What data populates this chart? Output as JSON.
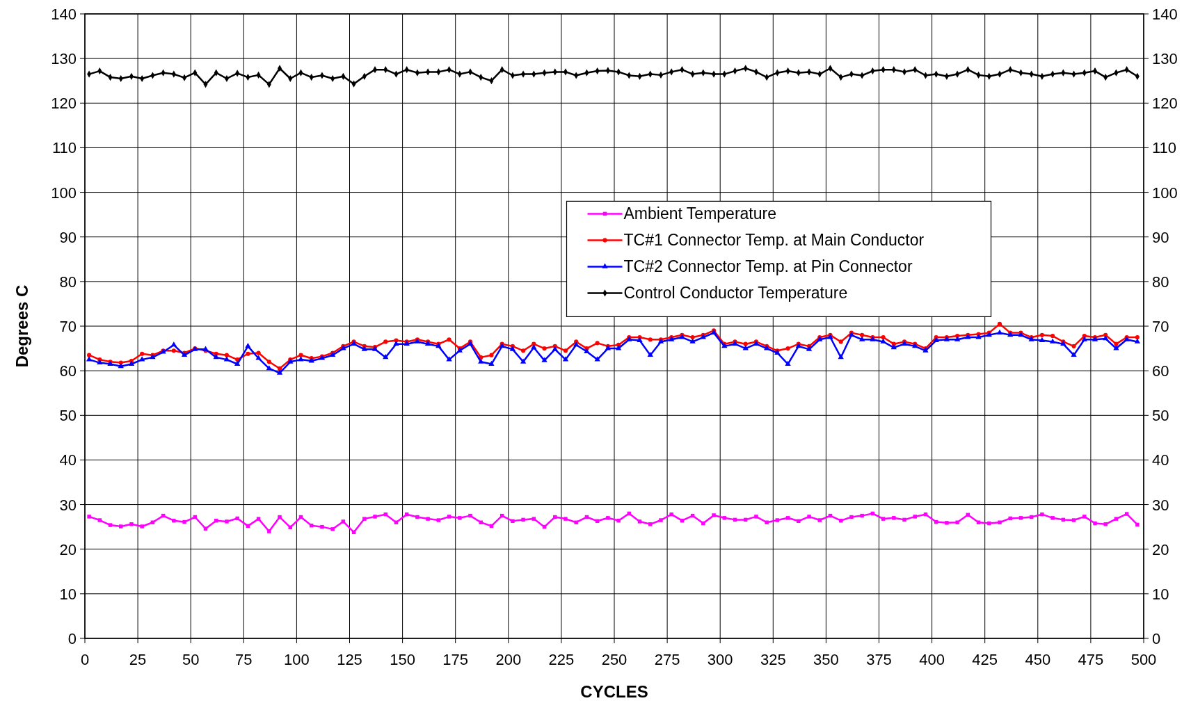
{
  "chart_data": {
    "type": "line",
    "xlabel": "CYCLES",
    "ylabel": "Degrees C",
    "x": [
      2,
      7,
      12,
      17,
      22,
      27,
      32,
      37,
      42,
      47,
      52,
      57,
      62,
      67,
      72,
      77,
      82,
      87,
      92,
      97,
      102,
      107,
      112,
      117,
      122,
      127,
      132,
      137,
      142,
      147,
      152,
      157,
      162,
      167,
      172,
      177,
      182,
      187,
      192,
      197,
      202,
      207,
      212,
      217,
      222,
      227,
      232,
      237,
      242,
      247,
      252,
      257,
      262,
      267,
      272,
      277,
      282,
      287,
      292,
      297,
      302,
      307,
      312,
      317,
      322,
      327,
      332,
      337,
      342,
      347,
      352,
      357,
      362,
      367,
      372,
      377,
      382,
      387,
      392,
      397,
      402,
      407,
      412,
      417,
      422,
      427,
      432,
      437,
      442,
      447,
      452,
      457,
      462,
      467,
      472,
      477,
      482,
      487,
      492,
      497
    ],
    "series": [
      {
        "name": "Ambient Temperature",
        "color": "#ff00ff",
        "marker": "square",
        "values": [
          27.3,
          26.5,
          25.4,
          25.1,
          25.6,
          25.1,
          26.0,
          27.5,
          26.4,
          26.1,
          27.2,
          24.6,
          26.4,
          26.2,
          26.9,
          25.2,
          26.8,
          24.0,
          27.2,
          24.9,
          27.2,
          25.3,
          25.0,
          24.5,
          26.2,
          23.8,
          26.8,
          27.3,
          27.8,
          26.0,
          27.8,
          27.2,
          26.8,
          26.5,
          27.3,
          27.0,
          27.5,
          26.0,
          25.2,
          27.5,
          26.3,
          26.6,
          26.8,
          25.0,
          27.2,
          26.8,
          26.0,
          27.2,
          26.3,
          27.0,
          26.4,
          28.0,
          26.2,
          25.6,
          26.5,
          27.8,
          26.4,
          27.5,
          25.8,
          27.6,
          27.0,
          26.6,
          26.6,
          27.3,
          26.0,
          26.5,
          27.0,
          26.3,
          27.3,
          26.5,
          27.5,
          26.4,
          27.2,
          27.5,
          28.0,
          26.8,
          27.0,
          26.6,
          27.3,
          27.8,
          26.1,
          25.9,
          26.0,
          27.7,
          26.0,
          25.8,
          26.0,
          26.9,
          27.0,
          27.2,
          27.8,
          27.0,
          26.6,
          26.5,
          27.3,
          25.8,
          25.6,
          26.8,
          27.9,
          25.5
        ]
      },
      {
        "name": "TC#1 Connector Temp. at Main Conductor",
        "color": "#ff0000",
        "marker": "circle",
        "values": [
          63.5,
          62.5,
          62.0,
          61.8,
          62.2,
          63.8,
          63.5,
          64.5,
          64.5,
          64.0,
          65.0,
          64.5,
          63.8,
          63.5,
          62.5,
          63.8,
          64.0,
          62.0,
          60.5,
          62.5,
          63.5,
          62.8,
          63.2,
          64.0,
          65.5,
          66.5,
          65.5,
          65.3,
          66.5,
          66.8,
          66.5,
          67.0,
          66.5,
          66.0,
          67.0,
          65.0,
          66.5,
          63.0,
          63.5,
          66.0,
          65.5,
          64.5,
          66.0,
          65.0,
          65.5,
          64.5,
          66.5,
          65.0,
          66.2,
          65.5,
          65.8,
          67.5,
          67.5,
          67.0,
          67.0,
          67.5,
          68.0,
          67.5,
          68.0,
          69.0,
          66.0,
          66.5,
          66.0,
          66.5,
          65.5,
          64.5,
          65.0,
          66.0,
          65.5,
          67.5,
          68.0,
          66.5,
          68.5,
          68.0,
          67.5,
          67.5,
          66.0,
          66.5,
          66.0,
          65.0,
          67.5,
          67.5,
          67.8,
          68.0,
          68.2,
          68.5,
          70.5,
          68.5,
          68.5,
          67.5,
          68.0,
          67.8,
          66.5,
          65.5,
          67.8,
          67.5,
          68.0,
          66.0,
          67.5,
          67.5
        ]
      },
      {
        "name": "TC#2 Connector Temp. at Pin Connector",
        "color": "#0000ff",
        "marker": "triangle",
        "values": [
          62.5,
          61.8,
          61.5,
          61.0,
          61.5,
          62.5,
          63.0,
          64.2,
          65.8,
          63.5,
          64.8,
          64.8,
          63.0,
          62.5,
          61.5,
          65.5,
          62.8,
          60.5,
          59.5,
          62.0,
          62.5,
          62.2,
          62.8,
          63.5,
          65.0,
          66.0,
          64.8,
          64.8,
          63.0,
          66.0,
          66.0,
          66.5,
          66.0,
          65.5,
          62.5,
          64.5,
          66.0,
          62.0,
          61.5,
          65.5,
          64.8,
          62.0,
          65.2,
          62.3,
          64.8,
          62.5,
          65.8,
          64.3,
          62.5,
          65.0,
          65.0,
          67.0,
          66.8,
          63.5,
          66.5,
          67.0,
          67.5,
          66.5,
          67.5,
          68.5,
          65.5,
          66.0,
          65.0,
          66.0,
          65.0,
          64.0,
          61.5,
          65.5,
          64.8,
          67.0,
          67.5,
          63.0,
          68.0,
          67.0,
          67.0,
          66.5,
          65.2,
          66.0,
          65.5,
          64.5,
          66.8,
          67.0,
          67.0,
          67.5,
          67.5,
          68.0,
          68.5,
          68.0,
          68.0,
          67.0,
          66.8,
          66.5,
          66.0,
          63.5,
          67.0,
          67.0,
          67.2,
          65.0,
          67.0,
          66.5
        ]
      },
      {
        "name": "Control Conductor Temperature",
        "color": "#000000",
        "marker": "diamond",
        "values": [
          126.5,
          127.2,
          125.8,
          125.5,
          126.0,
          125.5,
          126.2,
          126.8,
          126.5,
          125.7,
          126.8,
          124.2,
          126.8,
          125.5,
          126.7,
          125.8,
          126.3,
          124.2,
          127.8,
          125.5,
          126.8,
          125.8,
          126.2,
          125.5,
          126.0,
          124.3,
          126.0,
          127.5,
          127.5,
          126.5,
          127.5,
          126.8,
          127.0,
          127.0,
          127.5,
          126.5,
          127.0,
          125.8,
          125.0,
          127.5,
          126.2,
          126.5,
          126.5,
          126.8,
          127.0,
          127.0,
          126.2,
          126.8,
          127.2,
          127.3,
          127.0,
          126.2,
          126.0,
          126.5,
          126.3,
          127.0,
          127.5,
          126.5,
          126.8,
          126.5,
          126.5,
          127.2,
          127.8,
          127.0,
          125.8,
          126.8,
          127.2,
          126.8,
          127.0,
          126.5,
          127.8,
          125.8,
          126.5,
          126.2,
          127.2,
          127.5,
          127.5,
          127.0,
          127.5,
          126.2,
          126.5,
          126.0,
          126.5,
          127.5,
          126.3,
          126.0,
          126.5,
          127.5,
          126.8,
          126.5,
          126.0,
          126.5,
          126.8,
          126.5,
          126.8,
          127.2,
          125.8,
          126.8,
          127.5,
          126.0
        ]
      }
    ],
    "xlim": [
      0,
      500
    ],
    "xticks": [
      0,
      25,
      50,
      75,
      100,
      125,
      150,
      175,
      200,
      225,
      250,
      275,
      300,
      325,
      350,
      375,
      400,
      425,
      450,
      475,
      500
    ],
    "ylim": [
      0,
      140
    ],
    "yticks": [
      0,
      10,
      20,
      30,
      40,
      50,
      60,
      70,
      80,
      90,
      100,
      110,
      120,
      130,
      140
    ],
    "y2lim": [
      0,
      140
    ],
    "y2ticks": [
      0,
      10,
      20,
      30,
      40,
      50,
      60,
      70,
      80,
      90,
      100,
      110,
      120,
      130,
      140
    ],
    "grid": true,
    "legend": "center right",
    "line_style": "solid"
  }
}
